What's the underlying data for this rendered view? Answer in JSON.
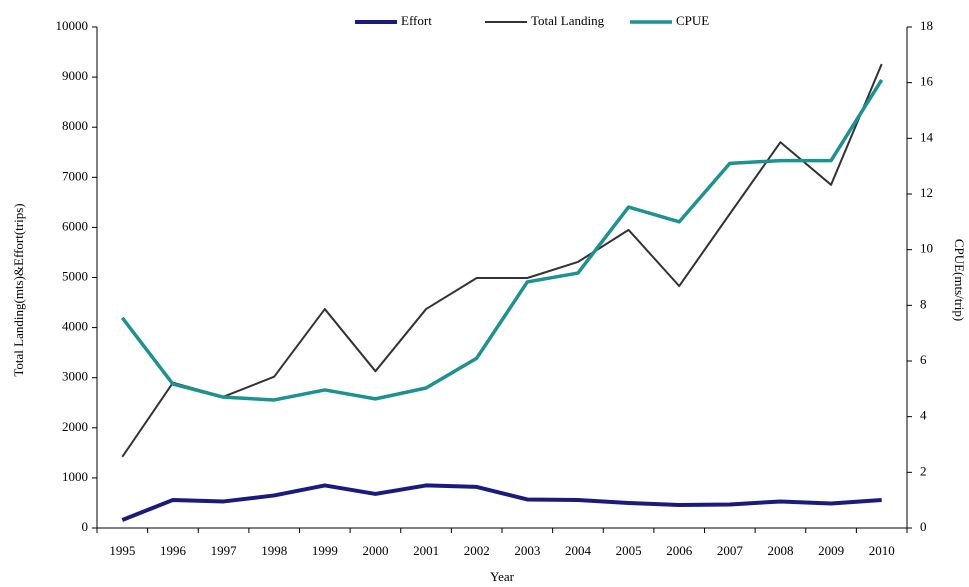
{
  "chart_data": {
    "type": "line",
    "x_label": "Year",
    "y_label": "Total Landing(mts)&Effort(trips)",
    "y2_label": "CPUE(mts/trip)",
    "categories": [
      "1995",
      "1996",
      "1997",
      "1998",
      "1999",
      "2000",
      "2001",
      "2002",
      "2003",
      "2004",
      "2005",
      "2006",
      "2007",
      "2008",
      "2009",
      "2010"
    ],
    "series": [
      {
        "name": "Effort",
        "color": "#1b1b7e",
        "width": 4,
        "values": [
          160,
          560,
          530,
          650,
          850,
          680,
          850,
          820,
          570,
          560,
          500,
          460,
          470,
          530,
          490,
          560
        ]
      },
      {
        "name": "Total Landing",
        "color": "#333333",
        "width": 2,
        "values": [
          1420,
          2900,
          2620,
          3020,
          4370,
          3130,
          4370,
          4990,
          4990,
          5310,
          5950,
          4830,
          6270,
          7700,
          6850,
          9260
        ]
      },
      {
        "name": "CPUE",
        "color": "#1e9191",
        "width": 3.5,
        "axis": "y2",
        "values": [
          7.55,
          5.17,
          4.7,
          4.6,
          4.96,
          4.64,
          5.03,
          6.1,
          8.84,
          9.16,
          11.53,
          11.0,
          13.1,
          13.2,
          13.2,
          16.1
        ]
      }
    ],
    "ylim": [
      0,
      10000
    ],
    "yticks": [
      0,
      1000,
      2000,
      3000,
      4000,
      5000,
      6000,
      7000,
      8000,
      9000,
      10000
    ],
    "y2lim": [
      0,
      18
    ],
    "y2ticks": [
      0,
      2,
      4,
      6,
      8,
      10,
      12,
      14,
      16,
      18
    ],
    "legend": "top",
    "grid": false
  }
}
